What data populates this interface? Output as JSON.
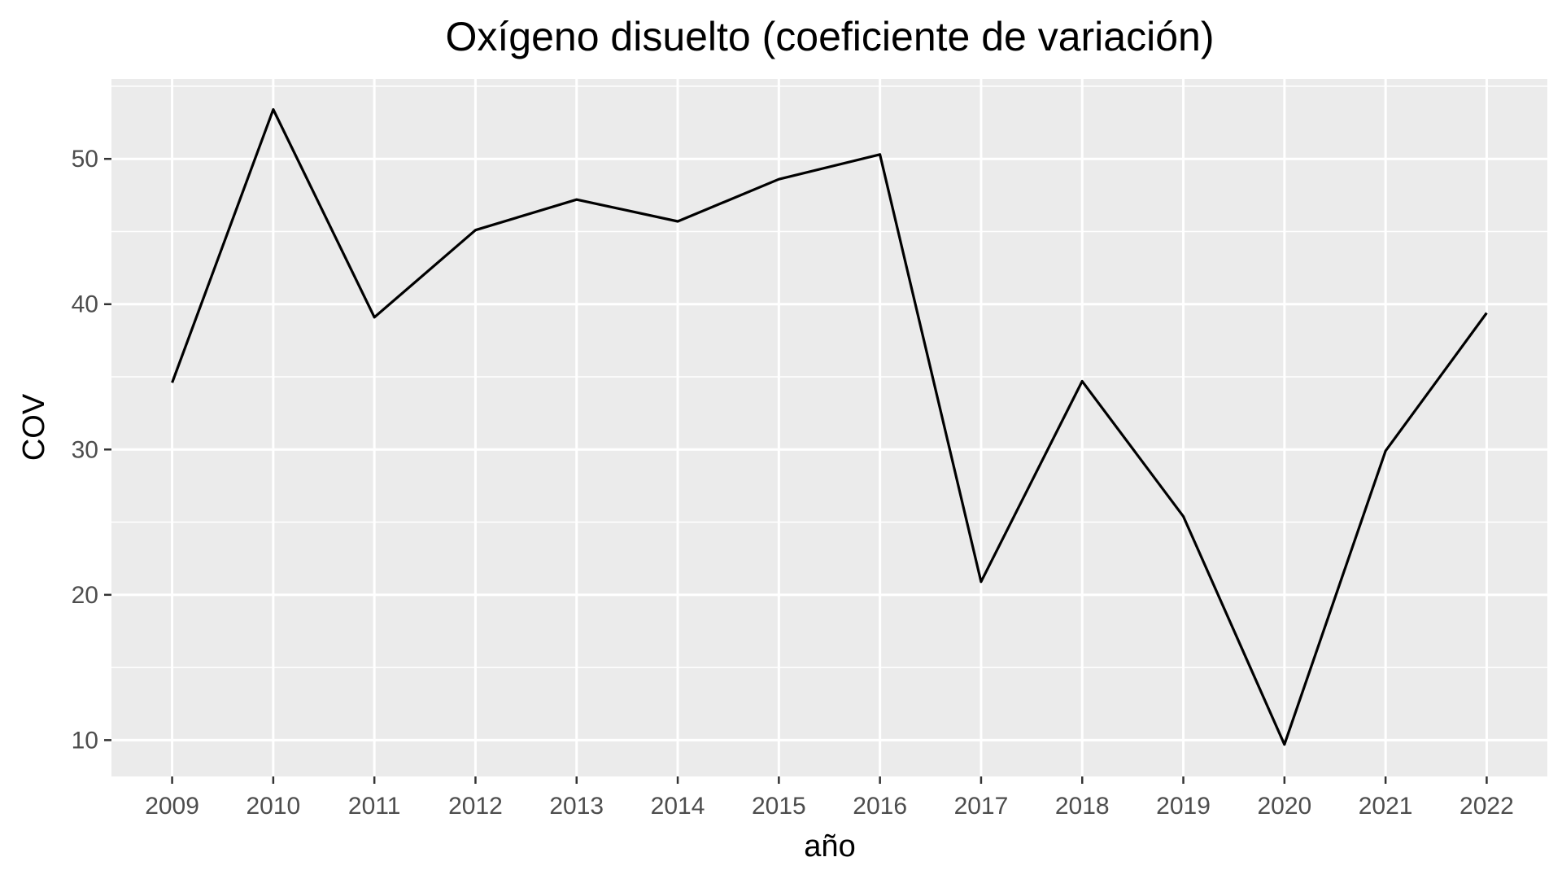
{
  "chart_data": {
    "type": "line",
    "title": "Oxígeno disuelto (coeficiente de variación)",
    "xlabel": "año",
    "ylabel": "COV",
    "x": [
      2009,
      2010,
      2011,
      2012,
      2013,
      2014,
      2015,
      2016,
      2017,
      2018,
      2019,
      2020,
      2021,
      2022
    ],
    "x_tick_labels": [
      "2009",
      "2010",
      "2011",
      "2012",
      "2013",
      "2014",
      "2015",
      "2016",
      "2017",
      "2018",
      "2019",
      "2020",
      "2021",
      "2022"
    ],
    "series": [
      {
        "values": [
          34.6,
          53.4,
          39.1,
          45.1,
          47.2,
          45.7,
          48.6,
          50.3,
          20.9,
          34.7,
          25.4,
          9.7,
          29.9,
          39.4
        ]
      }
    ],
    "y_ticks": [
      10,
      20,
      30,
      40,
      50
    ],
    "y_tick_labels": [
      "10",
      "20",
      "30",
      "40",
      "50"
    ],
    "ylim": [
      7.5,
      55.5
    ],
    "xlim": [
      2008.4,
      2022.6
    ],
    "grid": true,
    "legend": "none",
    "colors": {
      "panel_background": "#EBEBEB",
      "grid": "#FFFFFF",
      "line": "#000000",
      "tick_label": "#4D4D4D"
    }
  }
}
